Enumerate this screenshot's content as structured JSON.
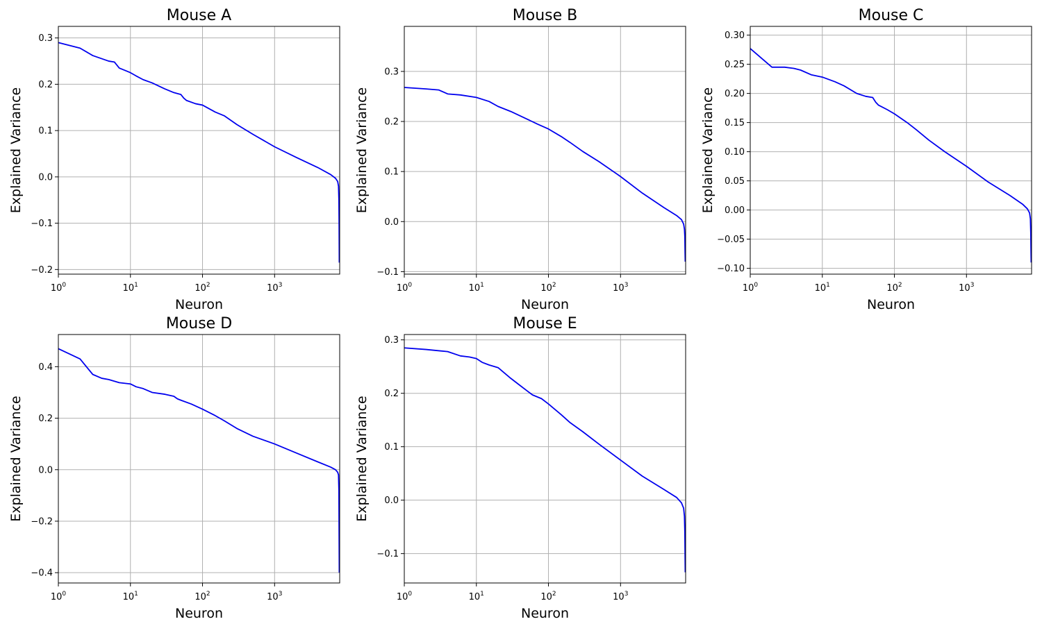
{
  "figure": {
    "background": "#ffffff",
    "series_color": "#0000ee"
  },
  "chart_data": [
    {
      "type": "line",
      "title": "Mouse A",
      "xlabel": "Neuron",
      "ylabel": "Explained Variance",
      "x_scale": "log",
      "xlim": [
        1,
        8000
      ],
      "ylim": [
        -0.21,
        0.325
      ],
      "xticks": [
        1,
        10,
        100,
        1000
      ],
      "xtick_labels": [
        {
          "base": "10",
          "exp": "0"
        },
        {
          "base": "10",
          "exp": "1"
        },
        {
          "base": "10",
          "exp": "2"
        },
        {
          "base": "10",
          "exp": "3"
        }
      ],
      "yticks": [
        -0.2,
        -0.1,
        0.0,
        0.1,
        0.2,
        0.3
      ],
      "ytick_labels": [
        "−0.2",
        "−0.1",
        "0.0",
        "0.1",
        "0.2",
        "0.3"
      ],
      "grid": true,
      "series": [
        {
          "color": "#0000ee",
          "x": [
            1,
            2,
            3,
            5,
            6,
            7,
            9,
            10,
            12,
            15,
            20,
            30,
            40,
            50,
            55,
            60,
            80,
            100,
            150,
            200,
            300,
            500,
            1000,
            2000,
            4000,
            6000,
            7000,
            7500,
            7700,
            7800,
            7850,
            7900
          ],
          "y": [
            0.29,
            0.278,
            0.262,
            0.25,
            0.248,
            0.235,
            0.228,
            0.225,
            0.218,
            0.21,
            0.203,
            0.19,
            0.182,
            0.178,
            0.17,
            0.165,
            0.158,
            0.155,
            0.14,
            0.132,
            0.113,
            0.092,
            0.065,
            0.042,
            0.02,
            0.005,
            -0.003,
            -0.01,
            -0.02,
            -0.05,
            -0.1,
            -0.185
          ]
        }
      ]
    },
    {
      "type": "line",
      "title": "Mouse B",
      "xlabel": "Neuron",
      "ylabel": "Explained Variance",
      "x_scale": "log",
      "xlim": [
        1,
        8000
      ],
      "ylim": [
        -0.105,
        0.39
      ],
      "xticks": [
        1,
        10,
        100,
        1000
      ],
      "xtick_labels": [
        {
          "base": "10",
          "exp": "0"
        },
        {
          "base": "10",
          "exp": "1"
        },
        {
          "base": "10",
          "exp": "2"
        },
        {
          "base": "10",
          "exp": "3"
        }
      ],
      "yticks": [
        -0.1,
        0.0,
        0.1,
        0.2,
        0.3
      ],
      "ytick_labels": [
        "−0.1",
        "0.0",
        "0.1",
        "0.2",
        "0.3"
      ],
      "grid": true,
      "series": [
        {
          "color": "#0000ee",
          "x": [
            1,
            2,
            3,
            4,
            6,
            10,
            15,
            20,
            30,
            50,
            70,
            100,
            150,
            200,
            300,
            500,
            1000,
            2000,
            4000,
            6000,
            7000,
            7500,
            7700,
            7800,
            7850,
            7900
          ],
          "y": [
            0.268,
            0.265,
            0.263,
            0.255,
            0.253,
            0.248,
            0.24,
            0.23,
            0.22,
            0.205,
            0.195,
            0.185,
            0.17,
            0.158,
            0.14,
            0.12,
            0.09,
            0.057,
            0.028,
            0.012,
            0.004,
            -0.005,
            -0.015,
            -0.03,
            -0.06,
            -0.08
          ]
        }
      ]
    },
    {
      "type": "line",
      "title": "Mouse C",
      "xlabel": "Neuron",
      "ylabel": "Explained Variance",
      "x_scale": "log",
      "xlim": [
        1,
        8000
      ],
      "ylim": [
        -0.11,
        0.315
      ],
      "xticks": [
        1,
        10,
        100,
        1000
      ],
      "xtick_labels": [
        {
          "base": "10",
          "exp": "0"
        },
        {
          "base": "10",
          "exp": "1"
        },
        {
          "base": "10",
          "exp": "2"
        },
        {
          "base": "10",
          "exp": "3"
        }
      ],
      "yticks": [
        -0.1,
        -0.05,
        0.0,
        0.05,
        0.1,
        0.15,
        0.2,
        0.25,
        0.3
      ],
      "ytick_labels": [
        "−0.10",
        "−0.05",
        "0.00",
        "0.05",
        "0.10",
        "0.15",
        "0.20",
        "0.25",
        "0.30"
      ],
      "grid": true,
      "series": [
        {
          "color": "#0000ee",
          "x": [
            1,
            2,
            3,
            4,
            5,
            7,
            10,
            15,
            20,
            30,
            40,
            50,
            55,
            60,
            80,
            100,
            150,
            200,
            300,
            500,
            1000,
            2000,
            4000,
            6000,
            7000,
            7500,
            7700,
            7800,
            7850,
            7900
          ],
          "y": [
            0.277,
            0.245,
            0.245,
            0.243,
            0.24,
            0.232,
            0.228,
            0.22,
            0.213,
            0.2,
            0.195,
            0.193,
            0.185,
            0.18,
            0.172,
            0.165,
            0.15,
            0.138,
            0.12,
            0.1,
            0.075,
            0.048,
            0.025,
            0.01,
            0.002,
            -0.005,
            -0.015,
            -0.04,
            -0.07,
            -0.09
          ]
        }
      ]
    },
    {
      "type": "line",
      "title": "Mouse D",
      "xlabel": "Neuron",
      "ylabel": "Explained Variance",
      "x_scale": "log",
      "xlim": [
        1,
        8000
      ],
      "ylim": [
        -0.44,
        0.525
      ],
      "xticks": [
        1,
        10,
        100,
        1000
      ],
      "xtick_labels": [
        {
          "base": "10",
          "exp": "0"
        },
        {
          "base": "10",
          "exp": "1"
        },
        {
          "base": "10",
          "exp": "2"
        },
        {
          "base": "10",
          "exp": "3"
        }
      ],
      "yticks": [
        -0.4,
        -0.2,
        0.0,
        0.2,
        0.4
      ],
      "ytick_labels": [
        "−0.4",
        "−0.2",
        "0.0",
        "0.2",
        "0.4"
      ],
      "grid": true,
      "series": [
        {
          "color": "#0000ee",
          "x": [
            1,
            2,
            3,
            4,
            5,
            7,
            10,
            12,
            15,
            20,
            30,
            40,
            45,
            50,
            70,
            100,
            150,
            200,
            300,
            500,
            1000,
            2000,
            4000,
            6000,
            7000,
            7500,
            7700,
            7800,
            7850,
            7900
          ],
          "y": [
            0.47,
            0.43,
            0.37,
            0.355,
            0.35,
            0.338,
            0.333,
            0.322,
            0.315,
            0.3,
            0.293,
            0.285,
            0.275,
            0.27,
            0.255,
            0.235,
            0.21,
            0.19,
            0.16,
            0.13,
            0.1,
            0.065,
            0.03,
            0.01,
            0.0,
            -0.01,
            -0.02,
            -0.08,
            -0.25,
            -0.4
          ]
        }
      ]
    },
    {
      "type": "line",
      "title": "Mouse E",
      "xlabel": "Neuron",
      "ylabel": "Explained Variance",
      "x_scale": "log",
      "xlim": [
        1,
        8000
      ],
      "ylim": [
        -0.155,
        0.31
      ],
      "xticks": [
        1,
        10,
        100,
        1000
      ],
      "xtick_labels": [
        {
          "base": "10",
          "exp": "0"
        },
        {
          "base": "10",
          "exp": "1"
        },
        {
          "base": "10",
          "exp": "2"
        },
        {
          "base": "10",
          "exp": "3"
        }
      ],
      "yticks": [
        -0.1,
        0.0,
        0.1,
        0.2,
        0.3
      ],
      "ytick_labels": [
        "−0.1",
        "0.0",
        "0.1",
        "0.2",
        "0.3"
      ],
      "grid": true,
      "series": [
        {
          "color": "#0000ee",
          "x": [
            1,
            2,
            4,
            6,
            8,
            10,
            12,
            15,
            20,
            30,
            40,
            50,
            60,
            80,
            100,
            150,
            200,
            300,
            500,
            1000,
            2000,
            4000,
            6000,
            7000,
            7500,
            7700,
            7800,
            7850,
            7900
          ],
          "y": [
            0.285,
            0.282,
            0.278,
            0.27,
            0.268,
            0.265,
            0.258,
            0.253,
            0.248,
            0.228,
            0.215,
            0.205,
            0.197,
            0.19,
            0.18,
            0.16,
            0.145,
            0.128,
            0.105,
            0.075,
            0.045,
            0.02,
            0.005,
            -0.005,
            -0.015,
            -0.03,
            -0.06,
            -0.1,
            -0.135
          ]
        }
      ]
    }
  ]
}
